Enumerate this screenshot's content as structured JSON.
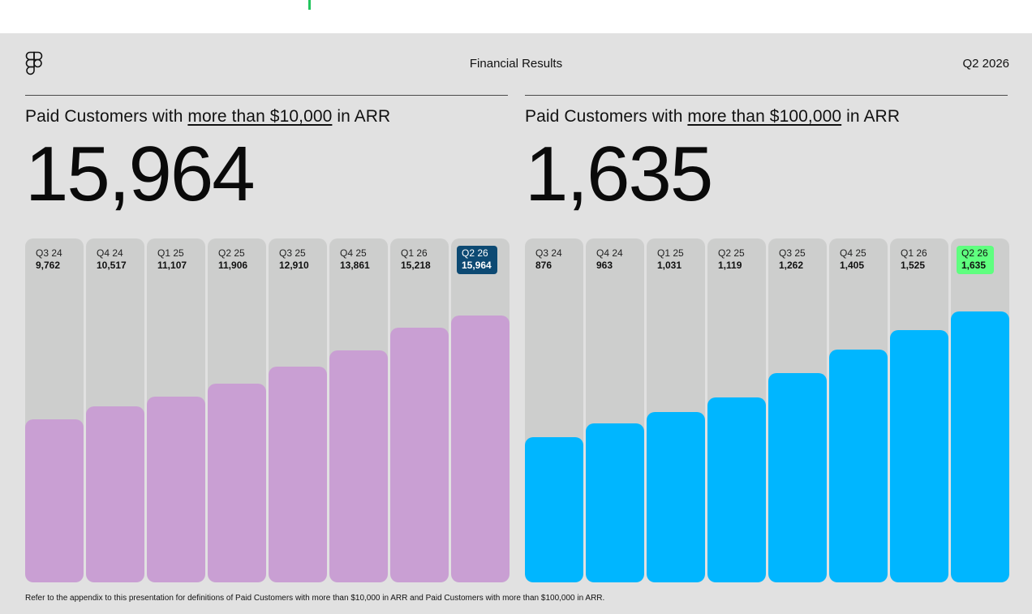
{
  "header": {
    "title": "Financial Results",
    "period": "Q2 2026",
    "logo_icon": "figma-logo-icon"
  },
  "panels": [
    {
      "title_prefix": "Paid Customers with ",
      "title_emphasis": "more than $10,000",
      "title_suffix": " in ARR",
      "big_number": "15,964"
    },
    {
      "title_prefix": "Paid Customers with ",
      "title_emphasis": "more than $100,000",
      "title_suffix": " in ARR",
      "big_number": "1,635"
    }
  ],
  "chart_data": [
    {
      "type": "bar",
      "categories": [
        "Q3 24",
        "Q4 24",
        "Q1 25",
        "Q2 25",
        "Q3 25",
        "Q4 25",
        "Q1 26",
        "Q2 26"
      ],
      "values": [
        9762,
        10517,
        11107,
        11906,
        12910,
        13861,
        15218,
        15964
      ],
      "value_labels": [
        "9,762",
        "10,517",
        "11,107",
        "11,906",
        "12,910",
        "13,861",
        "15,218",
        "15,964"
      ],
      "ylim": [
        0,
        20580
      ],
      "grid": false,
      "bar_color": "#c99fd3",
      "track_color": "#cdcecd",
      "highlight_index": 7,
      "highlight_bg": "#0d4a73",
      "highlight_text": "#ffffff"
    },
    {
      "type": "bar",
      "categories": [
        "Q3 24",
        "Q4 24",
        "Q1 25",
        "Q2 25",
        "Q3 25",
        "Q4 25",
        "Q1 26",
        "Q2 26"
      ],
      "values": [
        876,
        963,
        1031,
        1119,
        1262,
        1405,
        1525,
        1635
      ],
      "value_labels": [
        "876",
        "963",
        "1,031",
        "1,119",
        "1,262",
        "1,405",
        "1,525",
        "1,635"
      ],
      "ylim": [
        0,
        2078
      ],
      "grid": false,
      "bar_color": "#00b6ff",
      "track_color": "#cdcecd",
      "highlight_index": 7,
      "highlight_bg": "#5fff7f",
      "highlight_text": "#111111"
    }
  ],
  "footnote": "Refer to the appendix to this presentation for definitions of Paid Customers with more than $10,000 in ARR and Paid Customers with more than $100,000 in ARR."
}
